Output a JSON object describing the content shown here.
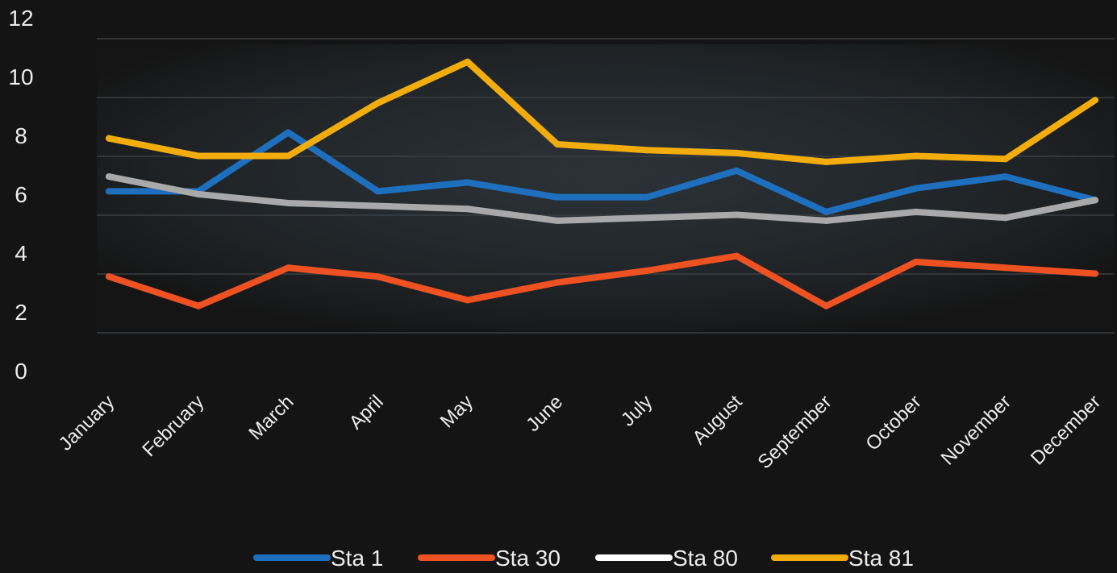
{
  "chart_data": {
    "type": "line",
    "title": "",
    "xlabel": "",
    "ylabel": "",
    "categories": [
      "January",
      "February",
      "March",
      "April",
      "May",
      "June",
      "July",
      "August",
      "September",
      "October",
      "November",
      "December"
    ],
    "ylim": [
      0,
      12
    ],
    "y_ticks": [
      "0",
      "2",
      "4",
      "6",
      "8",
      "10",
      "12"
    ],
    "grid": true,
    "legend_position": "bottom",
    "series": [
      {
        "name": "Sta 1",
        "color": "#1f6fbf",
        "values": [
          6.1,
          6.1,
          8.1,
          6.1,
          6.4,
          5.9,
          5.9,
          6.8,
          5.4,
          6.2,
          6.6,
          5.8
        ]
      },
      {
        "name": "Sta 30",
        "color": "#ee5223",
        "values": [
          3.2,
          2.2,
          3.5,
          3.2,
          2.4,
          3.0,
          3.4,
          3.9,
          2.2,
          3.7,
          3.5,
          3.3
        ]
      },
      {
        "name": "Sta 80",
        "color": "#a9a9a9",
        "legend_color": "#ffffff",
        "values": [
          6.6,
          6.0,
          5.7,
          5.6,
          5.5,
          5.1,
          5.2,
          5.3,
          5.1,
          5.4,
          5.2,
          5.8
        ]
      },
      {
        "name": "Sta 81",
        "color": "#f2ad0d",
        "values": [
          7.9,
          7.3,
          7.3,
          9.1,
          10.5,
          7.7,
          7.5,
          7.4,
          7.1,
          7.3,
          7.2,
          9.2
        ]
      }
    ]
  }
}
